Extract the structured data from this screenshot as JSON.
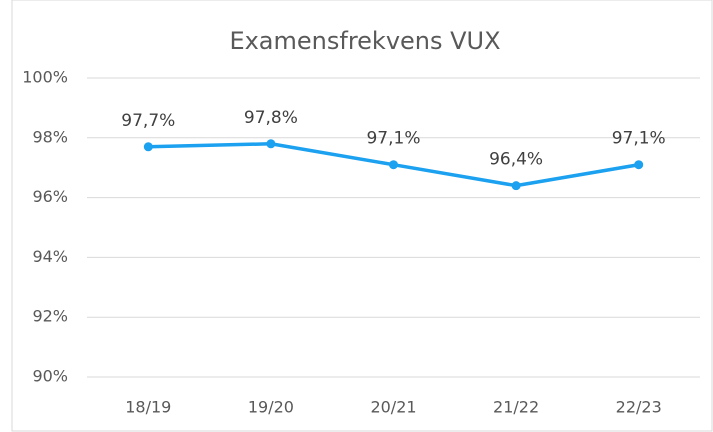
{
  "chart_data": {
    "type": "line",
    "title": "Examensfrekvens VUX",
    "categories": [
      "18/19",
      "19/20",
      "20/21",
      "21/22",
      "22/23"
    ],
    "series": [
      {
        "name": "Examensfrekvens VUX",
        "color": "#1ba1ef",
        "values": [
          97.7,
          97.8,
          97.1,
          96.4,
          97.1
        ],
        "value_labels": [
          "97,7%",
          "97,8%",
          "97,1%",
          "96,4%",
          "97,1%"
        ]
      }
    ],
    "ylim": [
      90,
      100
    ],
    "yticks": [
      {
        "value": 90,
        "label": "90%"
      },
      {
        "value": 92,
        "label": "92%"
      },
      {
        "value": 94,
        "label": "94%"
      },
      {
        "value": 96,
        "label": "96%"
      },
      {
        "value": 98,
        "label": "98%"
      },
      {
        "value": 100,
        "label": "100%"
      }
    ],
    "grid": true
  }
}
